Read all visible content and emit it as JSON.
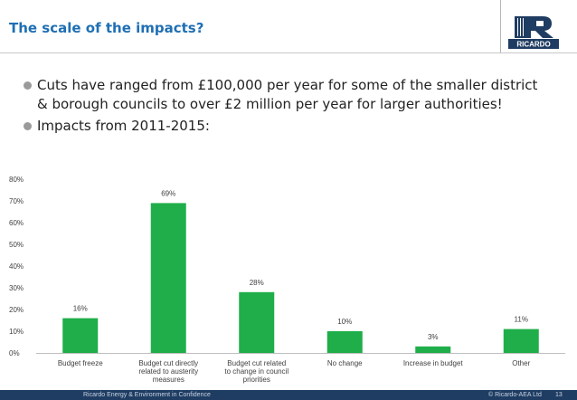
{
  "header": {
    "title": "The scale of the impacts?",
    "logo_text": "RICARDO"
  },
  "bullets": [
    "Cuts have ranged from £100,000 per year for some of the smaller district & borough councils to over £2 million per year for larger authorities!",
    "Impacts from 2011-2015:"
  ],
  "chart_data": {
    "type": "bar",
    "categories": [
      [
        "Budget freeze"
      ],
      [
        "Budget cut directly",
        "related to austerity",
        "measures"
      ],
      [
        "Budget cut related",
        "to change in council",
        "priorities"
      ],
      [
        "No change"
      ],
      [
        "Increase in budget"
      ],
      [
        "Other"
      ]
    ],
    "values": [
      16,
      69,
      28,
      10,
      3,
      11
    ],
    "value_labels": [
      "16%",
      "69%",
      "28%",
      "10%",
      "3%",
      "11%"
    ],
    "ylim": [
      0,
      80
    ],
    "yticks": [
      0,
      10,
      20,
      30,
      40,
      50,
      60,
      70,
      80
    ],
    "ytick_labels": [
      "0%",
      "10%",
      "20%",
      "30%",
      "40%",
      "50%",
      "60%",
      "70%",
      "80%"
    ],
    "title": "",
    "xlabel": "",
    "ylabel": "",
    "bar_color": "#1fae4a"
  },
  "footer": {
    "left": "Ricardo Energy & Environment in Confidence",
    "right": "© Ricardo-AEA Ltd",
    "page": "13"
  },
  "colors": {
    "title": "#1f6fb4",
    "footer_bg": "#1f3c62",
    "logo": "#1f3c62"
  }
}
